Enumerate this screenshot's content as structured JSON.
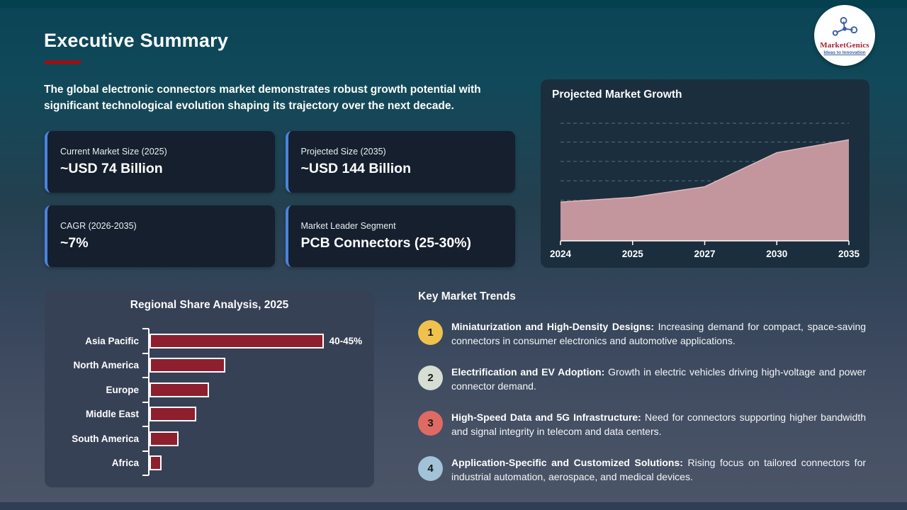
{
  "slide": {
    "title": "Executive Summary",
    "intro": "The global electronic connectors market demonstrates robust growth potential with significant technological evolution shaping its trajectory over the next decade."
  },
  "logo": {
    "name": "MarketGenics",
    "tagline": "Ideas to Innovation",
    "name_color": "#a31f34",
    "tagline_color": "#3a5fa5",
    "icon": "network-nodes-icon",
    "icon_color": "#3a5fa5"
  },
  "stats": [
    {
      "label": "Current Market Size (2025)",
      "value": "~USD 74 Billion"
    },
    {
      "label": "Projected Size (2035)",
      "value": "~USD 144 Billion"
    },
    {
      "label": "CAGR (2026-2035)",
      "value": "~7%"
    },
    {
      "label": "Market Leader Segment",
      "value": "PCB Connectors (25-30%)"
    }
  ],
  "chart_data": [
    {
      "id": "growth",
      "type": "area",
      "title": "Projected Market Growth",
      "categories": [
        "2024",
        "2025",
        "2027",
        "2030",
        "2035"
      ],
      "values": [
        33,
        37,
        46,
        75,
        86
      ],
      "ylim": [
        0,
        100
      ],
      "y_note": "no y-axis labels shown; values estimated as % of plot height against 6 unlabeled dashed gridlines",
      "gridline_fractions": [
        18,
        34.5,
        51,
        67.5,
        84,
        100
      ],
      "grid": "dashed horizontal",
      "legend": "none",
      "fill_color": "#c2969c",
      "line_color": "#deb9bd",
      "axis_color": "#ffffff"
    },
    {
      "id": "regional",
      "type": "bar",
      "orientation": "horizontal",
      "title": "Regional Share Analysis, 2025",
      "categories": [
        "Asia Pacific",
        "North America",
        "Europe",
        "Middle East",
        "South America",
        "Africa"
      ],
      "values": [
        42.5,
        18.5,
        14.5,
        11.5,
        7,
        3
      ],
      "value_labels": [
        "40-45%",
        "",
        "",
        "",
        "",
        ""
      ],
      "unit": "% share (only top bar labeled)",
      "bar_color": "#8e1f2e",
      "bar_border_color": "#ffffff",
      "legend": "none"
    }
  ],
  "trends": {
    "heading": "Key Market Trends",
    "items": [
      {
        "num": "1",
        "badge_color": "#efc24e",
        "heading": "Miniaturization and High-Density Designs:",
        "text": "Increasing demand for compact, space-saving connectors in consumer electronics and automotive applications."
      },
      {
        "num": "2",
        "badge_color": "#d6ddd2",
        "heading": "Electrification and EV Adoption:",
        "text": "Growth in electric vehicles driving high-voltage and power connector demand."
      },
      {
        "num": "3",
        "badge_color": "#df6a64",
        "heading": "High-Speed Data and 5G Infrastructure:",
        "text": "Need for connectors supporting higher bandwidth and signal integrity in telecom and data centers."
      },
      {
        "num": "4",
        "badge_color": "#a2c2d8",
        "heading": "Application-Specific and Customized Solutions:",
        "text": "Rising focus on tailored connectors for industrial automation, aerospace, and medical devices."
      }
    ]
  },
  "colors": {
    "background_top": "#0a4455",
    "background_bottom": "#4c5568",
    "top_strip": "#05404f",
    "bottom_strip": "#2f3d55",
    "card_background": "#151f2d",
    "card_accent": "#4a82de",
    "growth_panel_background": "#1b2e3d",
    "regional_panel_background": "#374156",
    "title_underline": "#c00000"
  }
}
